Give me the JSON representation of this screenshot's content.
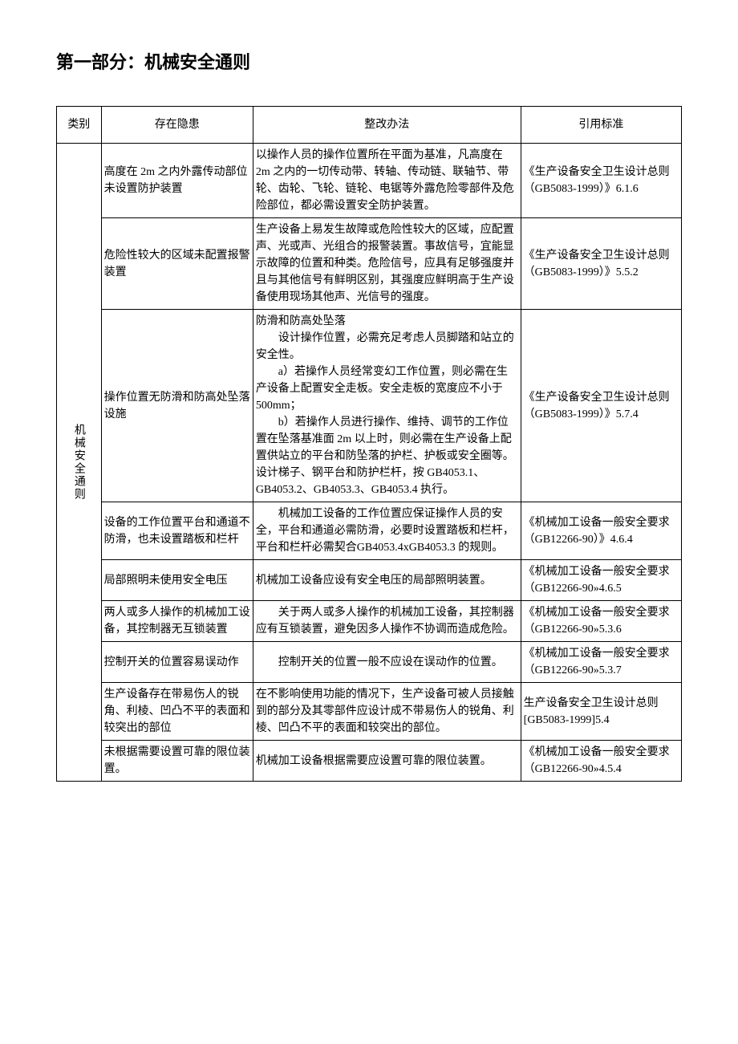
{
  "title": "第一部分：机械安全通则",
  "columns": [
    "类别",
    "存在隐患",
    "整改办法",
    "引用标准"
  ],
  "category": "机械安全通则",
  "rows": [
    {
      "hazard": "高度在 2m 之内外露传动部位未设置防护装置",
      "measure": "以操作人员的操作位置所在平面为基准，凡高度在 2m 之内的一切传动带、转轴、传动链、联轴节、带轮、齿轮、飞轮、链轮、电锯等外露危险零部件及危险部位，都必需设置安全防护装置。",
      "ref": "《生产设备安全卫生设计总则（GB5083-1999）》6.1.6"
    },
    {
      "hazard": "危险性较大的区域未配置报警装置",
      "measure": "生产设备上易发生故障或危险性较大的区域，应配置声、光或声、光组合的报警装置。事故信号，宜能显示故障的位置和种类。危险信号，应具有足够强度并且与其他信号有鲜明区别，其强度应鲜明高于生产设备使用现场其他声、光信号的强度。",
      "ref": "《生产设备安全卫生设计总则（GB5083-1999）》5.5.2"
    },
    {
      "hazard": "操作位置无防滑和防高处坠落设施",
      "measure_lines": [
        "防滑和防高处坠落",
        "　　设计操作位置，必需充足考虑人员脚踏和站立的安全性。",
        "　　a）若操作人员经常变幻工作位置，则必需在生产设备上配置安全走板。安全走板的宽度应不小于 500mm；",
        "　　b）若操作人员进行操作、维持、调节的工作位置在坠落基准面 2m 以上时，则必需在生产设备上配置供站立的平台和防坠落的护栏、护板或安全圈等。设计梯子、钢平台和防护栏杆，按 GB4053.1、GB4053.2、GB4053.3、GB4053.4 执行。"
      ],
      "ref": "《生产设备安全卫生设计总则（GB5083-1999）》5.7.4"
    },
    {
      "hazard": "设备的工作位置平台和通道不防滑，也未设置踏板和栏杆",
      "measure": "　　机械加工设备的工作位置应保证操作人员的安全，平台和通道必需防滑，必要时设置踏板和栏杆，平台和栏杆必需契合GB4053.4xGB4053.3 的规则。",
      "ref": "《机械加工设备一般安全要求（GB12266-90）》4.6.4"
    },
    {
      "hazard": "局部照明未使用安全电压",
      "measure": "机械加工设备应设有安全电压的局部照明装置。",
      "ref": "《机械加工设备一般安全要求（GB12266-90»4.6.5"
    },
    {
      "hazard": "两人或多人操作的机械加工设备，其控制器无互锁装置",
      "measure": "　　关于两人或多人操作的机械加工设备，其控制器应有互锁装置，避免因多人操作不协调而造成危险。",
      "ref": "《机械加工设备一般安全要求（GB12266-90»5.3.6"
    },
    {
      "hazard": "控制开关的位置容易误动作",
      "measure": "　　控制开关的位置一般不应设在误动作的位置。",
      "ref": "《机械加工设备一般安全要求（GB12266-90»5.3.7"
    },
    {
      "hazard": "生产设备存在带易伤人的锐角、利棱、凹凸不平的表面和较突出的部位",
      "measure": "在不影响使用功能的情况下，生产设备可被人员接触到的部分及其零部件应设计成不带易伤人的锐角、利棱、凹凸不平的表面和较突出的部位。",
      "ref": "生产设备安全卫生设计总则[GB5083-1999]5.4"
    },
    {
      "hazard": "未根据需要设置可靠的限位装置。",
      "measure": "机械加工设备根据需要应设置可靠的限位装置。",
      "ref": "《机械加工设备一般安全要求（GB12266-90»4.5.4"
    }
  ]
}
